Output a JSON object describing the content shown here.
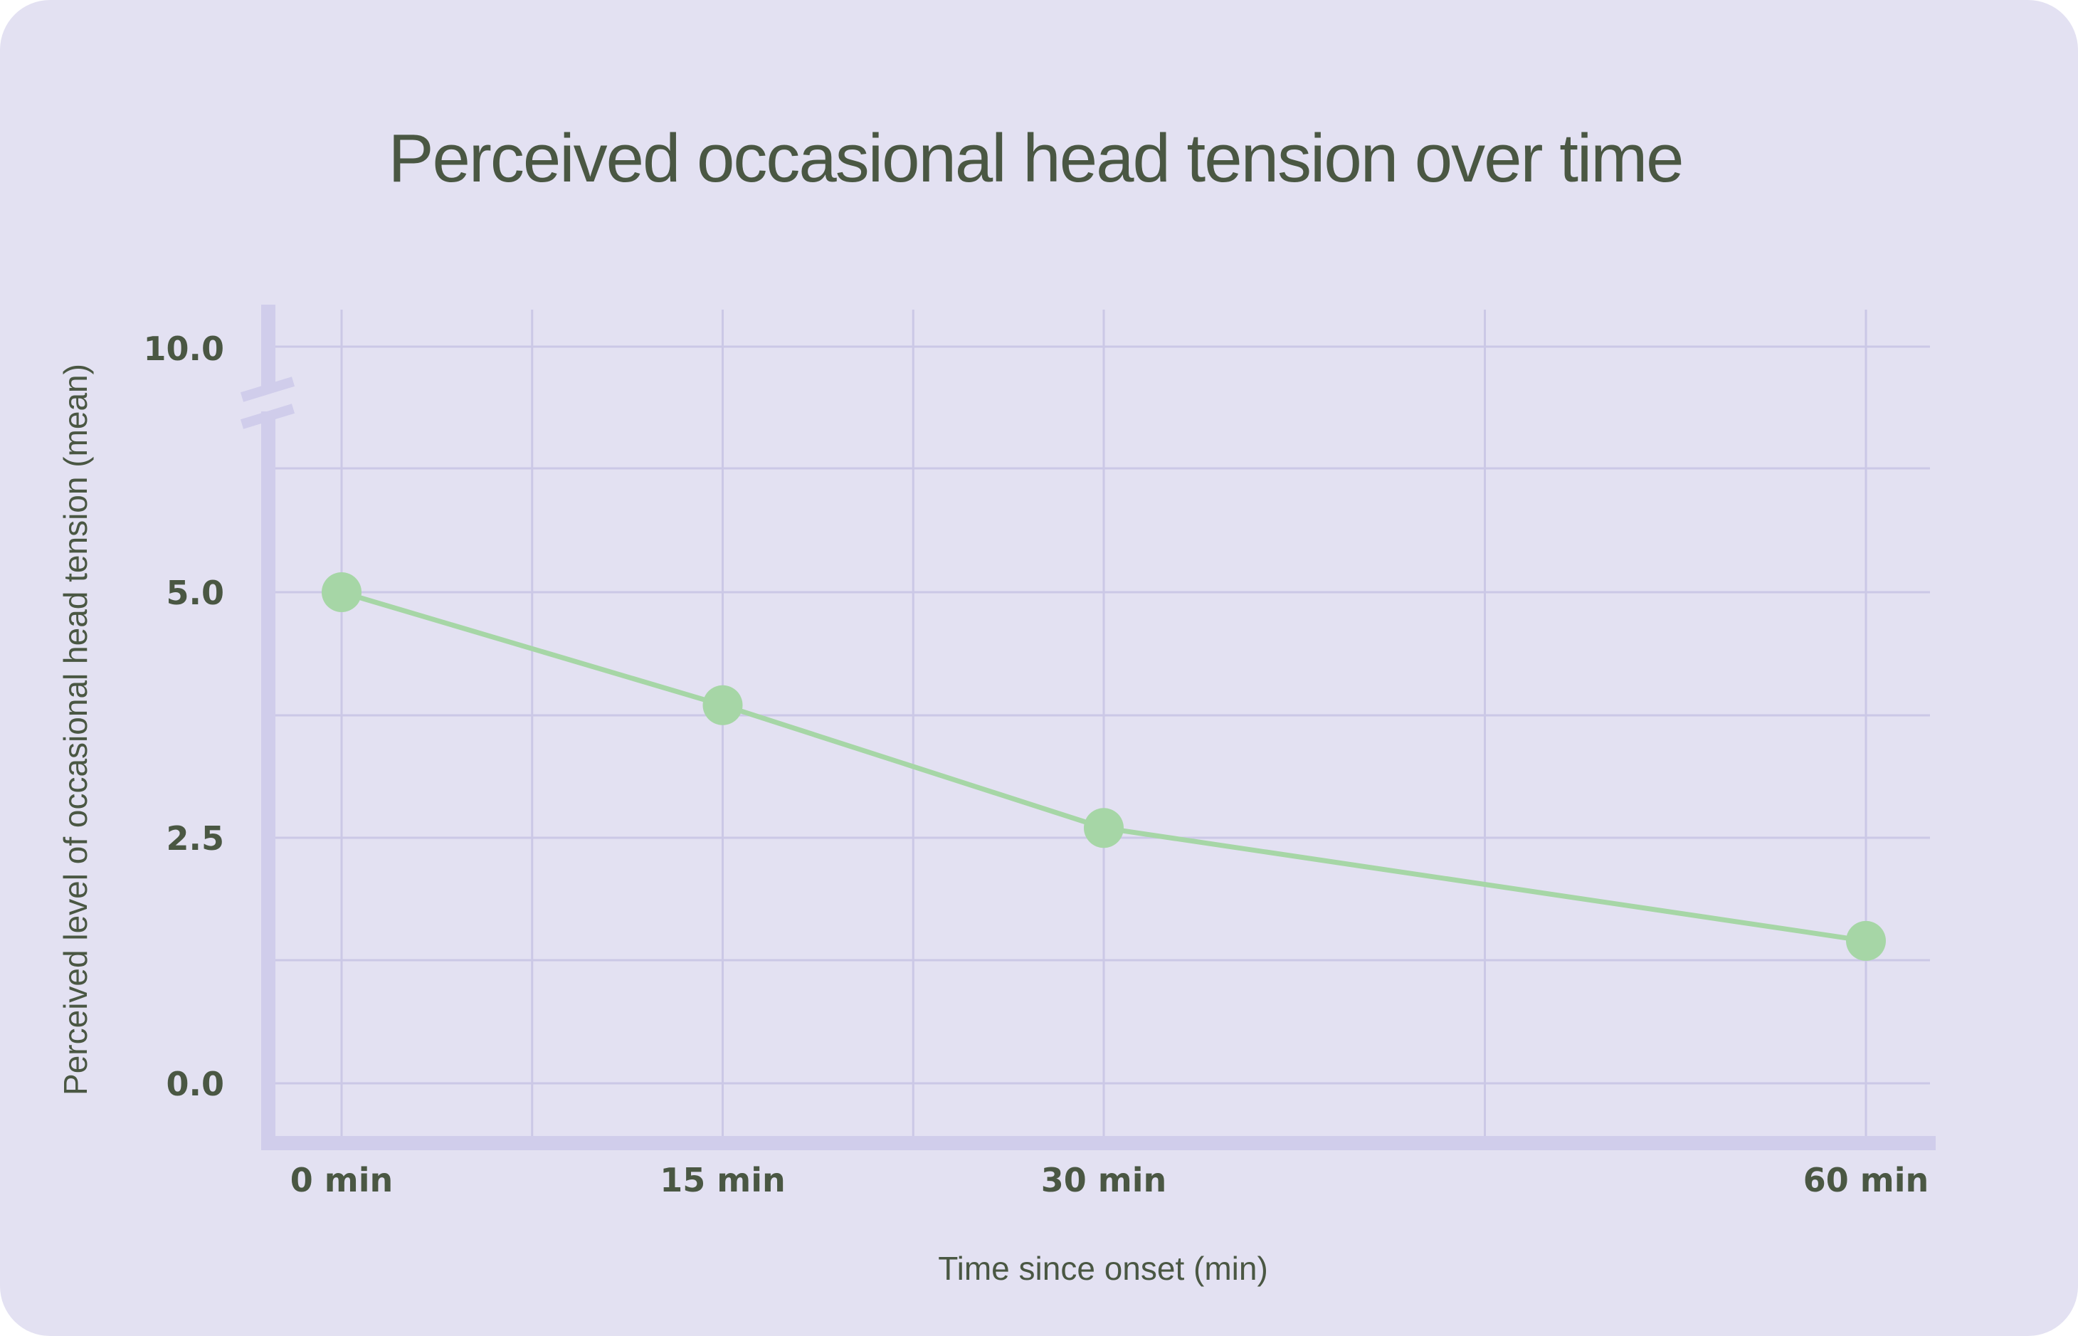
{
  "chart_data": {
    "type": "line",
    "title": "Perceived occasional head tension over time",
    "xlabel": "Time since onset (min)",
    "ylabel": "Perceived level of occasional head tension  (mean)",
    "x": [
      0,
      15,
      30,
      60
    ],
    "x_tick_labels": [
      "0 min",
      "15 min",
      "30 min",
      "60 min"
    ],
    "y_tick_labels": [
      "0.0",
      "2.5",
      "5.0",
      "10.0"
    ],
    "series": [
      {
        "values": [
          5.0,
          3.85,
          2.6,
          1.45
        ]
      }
    ],
    "xlim": [
      0,
      60
    ],
    "ylim": [
      0,
      5
    ],
    "y_axis_break": true,
    "grid": true,
    "colors": {
      "background": "#e3e1f2",
      "grid": "#cbc8e6",
      "axis": "#d0cdeb",
      "line": "#a6d6a6",
      "text": "#4a5743"
    }
  }
}
